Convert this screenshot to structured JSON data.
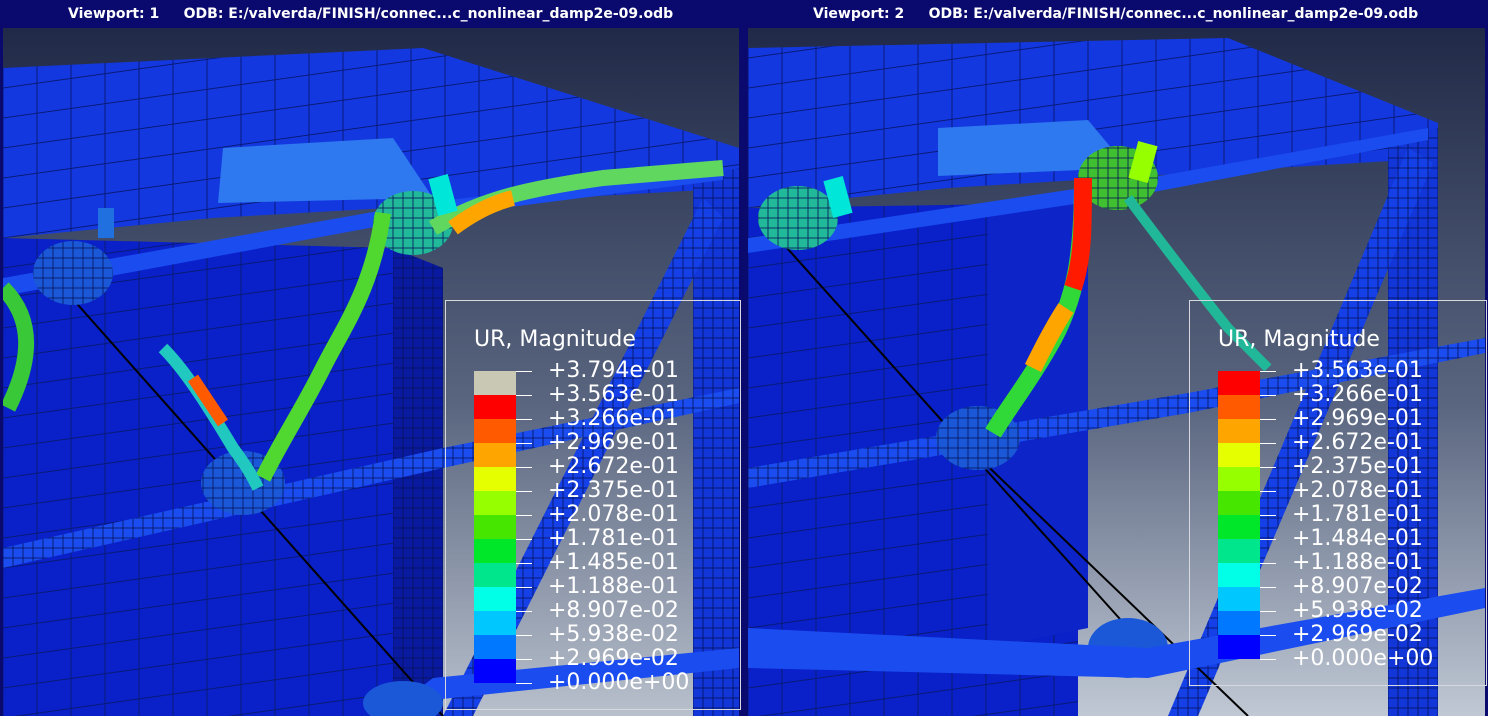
{
  "viewports": [
    {
      "id": "vp1",
      "title": "Viewport: 1     ODB: E:/valverda/FINISH/connec...c_nonlinear_damp2e-09.odb",
      "legend": {
        "title": "UR, Magnitude",
        "entries": [
          {
            "label": "+3.794e-01",
            "color": "#c8c8b4"
          },
          {
            "label": "+3.563e-01",
            "color": "#ff0000"
          },
          {
            "label": "+3.266e-01",
            "color": "#ff5a00"
          },
          {
            "label": "+2.969e-01",
            "color": "#ffa500"
          },
          {
            "label": "+2.672e-01",
            "color": "#e6ff00"
          },
          {
            "label": "+2.375e-01",
            "color": "#96ff00"
          },
          {
            "label": "+2.078e-01",
            "color": "#46e600"
          },
          {
            "label": "+1.781e-01",
            "color": "#00e628"
          },
          {
            "label": "+1.485e-01",
            "color": "#00e68c"
          },
          {
            "label": "+1.188e-01",
            "color": "#00ffe6"
          },
          {
            "label": "+8.907e-02",
            "color": "#00c8ff"
          },
          {
            "label": "+5.938e-02",
            "color": "#0078ff"
          },
          {
            "label": "+2.969e-02",
            "color": "#0000ff"
          },
          {
            "label": "+0.000e+00",
            "color": ""
          }
        ]
      }
    },
    {
      "id": "vp2",
      "title": "Viewport: 2     ODB: E:/valverda/FINISH/connec...c_nonlinear_damp2e-09.odb",
      "legend": {
        "title": "UR, Magnitude",
        "entries": [
          {
            "label": "+3.563e-01",
            "color": "#ff0000"
          },
          {
            "label": "+3.266e-01",
            "color": "#ff5a00"
          },
          {
            "label": "+2.969e-01",
            "color": "#ffa500"
          },
          {
            "label": "+2.672e-01",
            "color": "#e6ff00"
          },
          {
            "label": "+2.375e-01",
            "color": "#96ff00"
          },
          {
            "label": "+2.078e-01",
            "color": "#46e600"
          },
          {
            "label": "+1.781e-01",
            "color": "#00e628"
          },
          {
            "label": "+1.484e-01",
            "color": "#00e68c"
          },
          {
            "label": "+1.188e-01",
            "color": "#00ffe6"
          },
          {
            "label": "+8.907e-02",
            "color": "#00c8ff"
          },
          {
            "label": "+5.938e-02",
            "color": "#0078ff"
          },
          {
            "label": "+2.969e-02",
            "color": "#0000ff"
          },
          {
            "label": "+0.000e+00",
            "color": ""
          }
        ]
      }
    }
  ]
}
